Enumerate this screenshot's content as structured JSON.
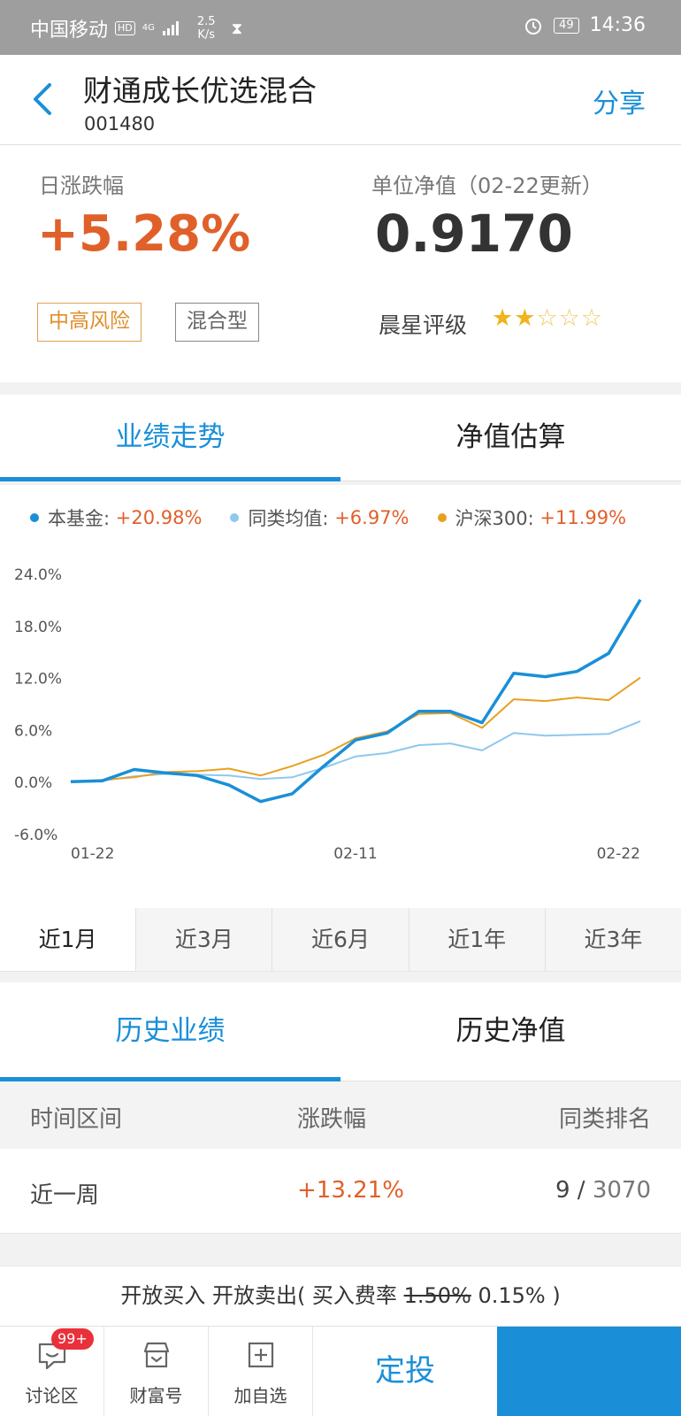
{
  "status_bar": {
    "carrier": "中国移动",
    "hd": "HD",
    "network": "4G",
    "speed_value": "2.5",
    "speed_unit": "K/s",
    "battery": "49",
    "time": "14:36"
  },
  "header": {
    "title": "财通成长优选混合",
    "code": "001480",
    "share_label": "分享"
  },
  "summary": {
    "daily_change_label": "日涨跌幅",
    "daily_change_value": "+5.28%",
    "nav_label": "单位净值（02-22更新）",
    "nav_value": "0.9170",
    "risk_tag": "中高风险",
    "type_tag": "混合型",
    "rating_label": "晨星评级",
    "rating_stars": 2,
    "rating_max": 5
  },
  "chart_tabs": [
    "业绩走势",
    "净值估算"
  ],
  "legend": [
    {
      "name": "本基金:",
      "value": "+20.98%",
      "color": "#1a8fd8"
    },
    {
      "name": "同类均值:",
      "value": "+6.97%",
      "color": "#8fc8ee"
    },
    {
      "name": "沪深300:",
      "value": "+11.99%",
      "color": "#e8a020"
    }
  ],
  "chart_data": {
    "type": "line",
    "x": [
      "01-22",
      "01-23",
      "01-24",
      "01-25",
      "01-28",
      "01-29",
      "01-30",
      "01-31",
      "02-01",
      "02-11",
      "02-12",
      "02-13",
      "02-14",
      "02-15",
      "02-18",
      "02-19",
      "02-20",
      "02-21",
      "02-22"
    ],
    "x_tick_labels": [
      "01-22",
      "02-11",
      "02-22"
    ],
    "y_tick_labels": [
      "24.0%",
      "18.0%",
      "12.0%",
      "6.0%",
      "0.0%",
      "-6.0%"
    ],
    "ylim": [
      -6,
      24
    ],
    "series": [
      {
        "name": "本基金",
        "color": "#1a8fd8",
        "values": [
          0,
          0.1,
          1.4,
          1.0,
          0.7,
          -0.4,
          -2.3,
          -1.4,
          1.8,
          4.8,
          5.6,
          8.1,
          8.1,
          6.8,
          12.5,
          12.1,
          12.7,
          14.8,
          20.98
        ]
      },
      {
        "name": "同类均值",
        "color": "#8fc8ee",
        "values": [
          0,
          0.1,
          0.6,
          0.9,
          0.8,
          0.7,
          0.3,
          0.5,
          1.6,
          2.9,
          3.3,
          4.2,
          4.4,
          3.6,
          5.6,
          5.3,
          5.4,
          5.5,
          6.97
        ]
      },
      {
        "name": "沪深300",
        "color": "#e8a020",
        "values": [
          0,
          0.2,
          0.5,
          1.1,
          1.2,
          1.5,
          0.7,
          1.8,
          3.1,
          5.0,
          5.8,
          7.8,
          7.9,
          6.2,
          9.5,
          9.3,
          9.7,
          9.4,
          11.99
        ]
      }
    ]
  },
  "periods": [
    "近1月",
    "近3月",
    "近6月",
    "近1年",
    "近3年"
  ],
  "history_tabs": [
    "历史业绩",
    "历史净值"
  ],
  "table": {
    "headers": [
      "时间区间",
      "涨跌幅",
      "同类排名"
    ],
    "rows": [
      {
        "period": "近一周",
        "change": "+13.21%",
        "rank": "9",
        "total": "3070"
      }
    ]
  },
  "notice": {
    "prefix": "开放买入 开放卖出( 买入费率 ",
    "original_rate": "1.50%",
    "discount_rate": " 0.15% )"
  },
  "bottom_bar": {
    "discuss_label": "讨论区",
    "discuss_badge": "99+",
    "wealth_label": "财富号",
    "add_label": "加自选",
    "dingtou_label": "定投"
  }
}
